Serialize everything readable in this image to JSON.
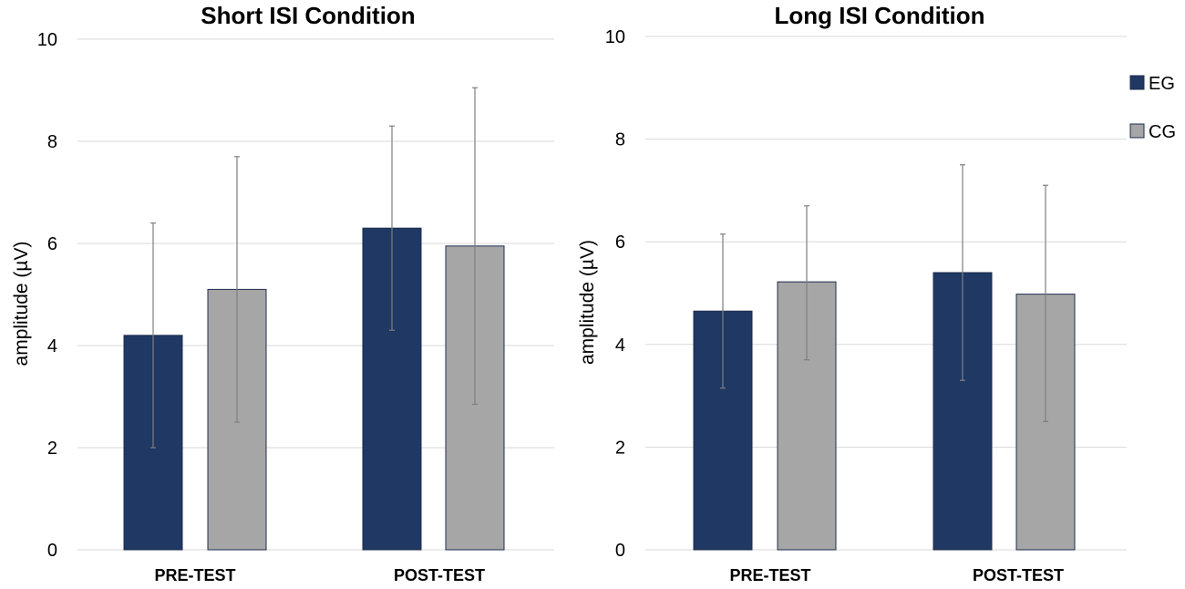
{
  "chart_data": [
    {
      "type": "bar",
      "title": "Short ISI Condition",
      "ylabel": "amplitude (µV)",
      "xlabel": "",
      "ylim": [
        0,
        10
      ],
      "yticks": [
        0,
        2,
        4,
        6,
        8,
        10
      ],
      "categories": [
        "PRE-TEST",
        "POST-TEST"
      ],
      "series": [
        {
          "name": "EG",
          "color": "#1f3864",
          "values": [
            4.2,
            6.3
          ],
          "err_low": [
            2.0,
            4.3
          ],
          "err_high": [
            6.4,
            8.3
          ]
        },
        {
          "name": "CG",
          "color": "#a6a6a6",
          "values": [
            5.1,
            5.95
          ],
          "err_low": [
            2.5,
            2.85
          ],
          "err_high": [
            7.7,
            9.05
          ]
        }
      ]
    },
    {
      "type": "bar",
      "title": "Long ISI Condition",
      "ylabel": "amplitude (µV)",
      "xlabel": "",
      "ylim": [
        0,
        10
      ],
      "yticks": [
        0,
        2,
        4,
        6,
        8,
        10
      ],
      "categories": [
        "PRE-TEST",
        "POST-TEST"
      ],
      "series": [
        {
          "name": "EG",
          "color": "#1f3864",
          "values": [
            4.65,
            5.4
          ],
          "err_low": [
            3.15,
            3.3
          ],
          "err_high": [
            6.15,
            7.5
          ]
        },
        {
          "name": "CG",
          "color": "#a6a6a6",
          "values": [
            5.22,
            4.98
          ],
          "err_low": [
            3.7,
            2.5
          ],
          "err_high": [
            6.7,
            7.1
          ]
        }
      ]
    }
  ],
  "legend": [
    {
      "label": "EG",
      "color": "#1f3864"
    },
    {
      "label": "CG",
      "color": "#a6a6a6"
    }
  ]
}
